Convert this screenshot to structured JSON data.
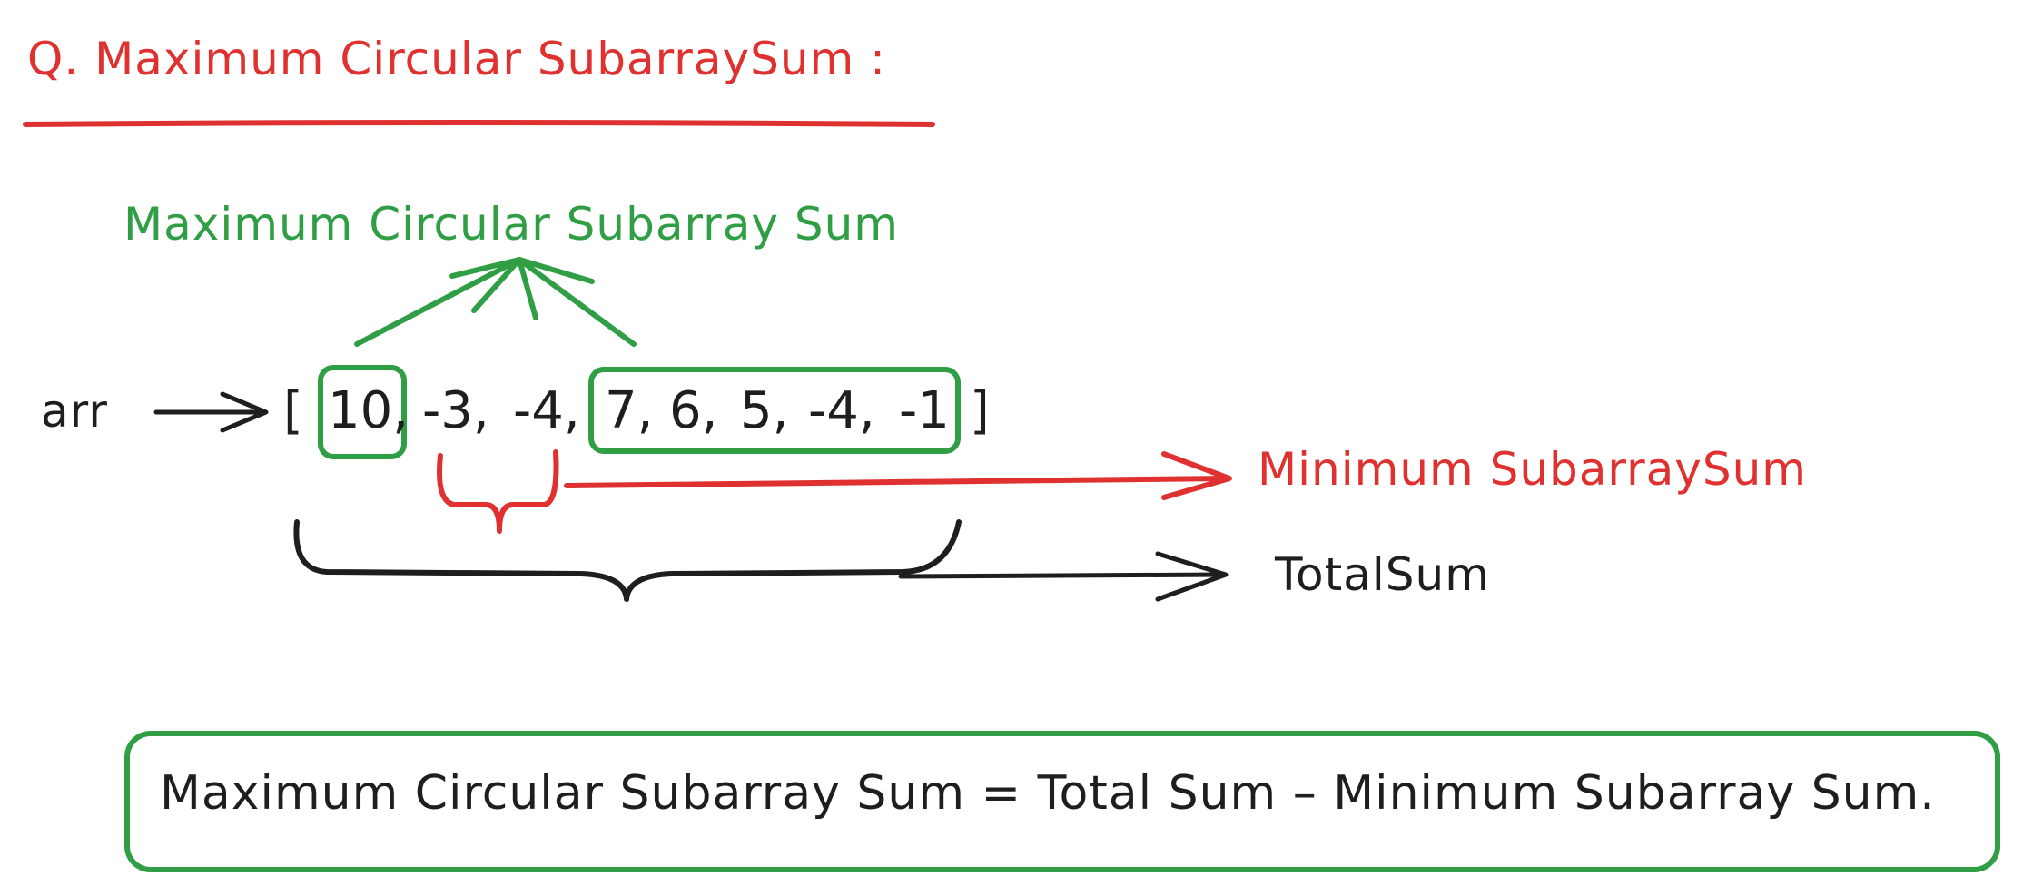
{
  "title": "Q. Maximum Circular SubarraySum :",
  "max_circular_label": "Maximum Circular Subarray Sum",
  "arr_label": "arr",
  "array": {
    "open_bracket": "[",
    "close_bracket": "]",
    "elements": [
      "10,",
      "-3,",
      "-4,",
      "7,",
      "6,",
      "5,",
      "-4,",
      "-1"
    ]
  },
  "min_subarray_label": "Minimum SubarraySum",
  "total_sum_label": "TotalSum",
  "formula": "Maximum Circular Subarray Sum = Total Sum – Minimum Subarray Sum.",
  "colors": {
    "red": "#e03131",
    "green": "#2f9e44",
    "black": "#1e1e1e"
  }
}
